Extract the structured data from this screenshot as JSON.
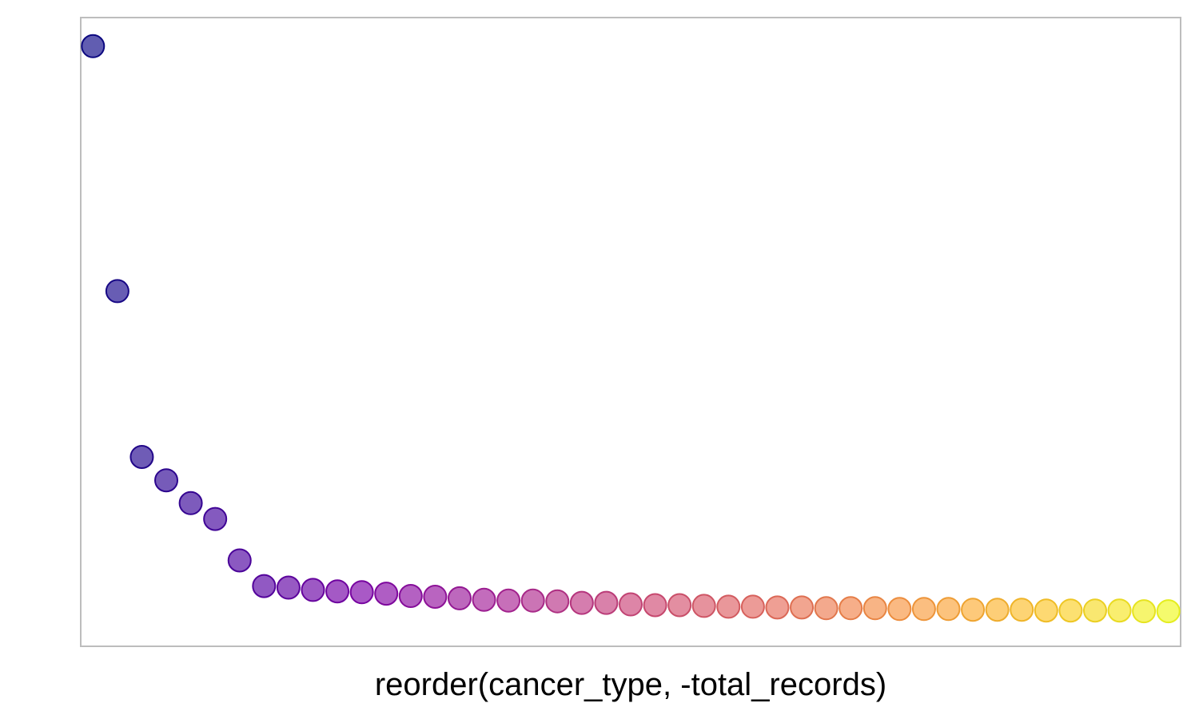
{
  "chart_data": {
    "type": "scatter",
    "title": "",
    "xlabel": "reorder(cancer_type, -total_records)",
    "ylabel": "",
    "x": [
      1,
      2,
      3,
      4,
      5,
      6,
      7,
      8,
      9,
      10,
      11,
      12,
      13,
      14,
      15,
      16,
      17,
      18,
      19,
      20,
      21,
      22,
      23,
      24,
      25,
      26,
      27,
      28,
      29,
      30,
      31,
      32,
      33,
      34,
      35,
      36,
      37,
      38,
      39,
      40,
      41,
      42,
      43,
      44,
      45
    ],
    "y": [
      1.0,
      0.5714,
      0.2813,
      0.2404,
      0.2005,
      0.1728,
      0.1003,
      0.0554,
      0.0527,
      0.0487,
      0.0461,
      0.0447,
      0.0421,
      0.038,
      0.0367,
      0.034,
      0.0314,
      0.03,
      0.03,
      0.0287,
      0.026,
      0.026,
      0.0233,
      0.022,
      0.022,
      0.0207,
      0.0193,
      0.0193,
      0.018,
      0.018,
      0.0167,
      0.0167,
      0.0167,
      0.0153,
      0.0153,
      0.0153,
      0.014,
      0.014,
      0.014,
      0.0126,
      0.0126,
      0.0126,
      0.0126,
      0.0113,
      0.0113
    ],
    "ylim": [
      -0.05,
      1.05
    ],
    "xlim": [
      0.5,
      45.5
    ],
    "grid": false,
    "legend": "none",
    "color_scale": "plasma"
  }
}
